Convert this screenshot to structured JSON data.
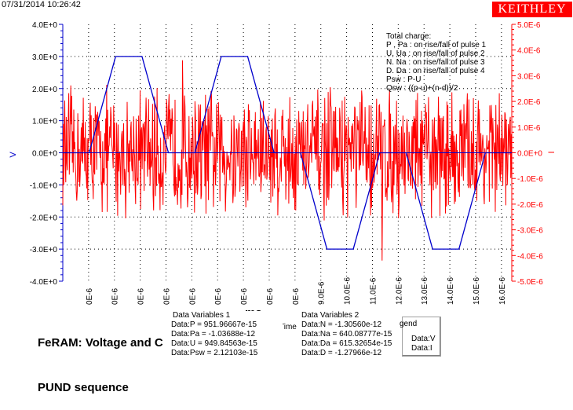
{
  "timestamp": "07/31/2014 10:26:42",
  "logo": "KEITHLEY",
  "title_lines": [
    "FeRAM: Voltage and C",
    "PUND sequence"
  ],
  "title_tail": "ms",
  "colors": {
    "voltage": "#0000cc",
    "current": "#ff0000",
    "grid": "#000000",
    "logo_bg": "#ff0000"
  },
  "chart_data": {
    "type": "line",
    "title": "",
    "xlabel": "Time",
    "ylabel_left": "V",
    "ylabel_right": "I",
    "grid": true,
    "y_left": {
      "range": [
        -4.0,
        4.0
      ],
      "ticks": [
        "4.0E+0",
        "3.0E+0",
        "2.0E+0",
        "1.0E+0",
        "0.0E+0",
        "-1.0E+0",
        "-2.0E+0",
        "-3.0E+0",
        "-4.0E+0"
      ]
    },
    "y_right": {
      "range": [
        -5e-06,
        5e-06
      ],
      "ticks": [
        "5.0E-6",
        "4.0E-6",
        "3.0E-6",
        "2.0E-6",
        "1.0E-6",
        "0.0E+0",
        "-1.0E-6",
        "-2.0E-6",
        "-3.0E-6",
        "-4.0E-6",
        "-5.0E-6"
      ]
    },
    "x": {
      "range": [
        0,
        1.7e-05
      ],
      "tick_labels": [
        "0E-6",
        "0E-6",
        "0E-6",
        "0E-6",
        "0E-6",
        "0E-6",
        "0E-6",
        "0E-6",
        "0E-6",
        "9.0E-6",
        "10.0E-6",
        "11.0E-6",
        "12.0E-6",
        "13.0E-6",
        "14.0E-6",
        "15.0E-6",
        "16.0E-6"
      ]
    },
    "series": [
      {
        "name": "Data:V",
        "axis": "left",
        "x": [
          0,
          1e-06,
          2e-06,
          3e-06,
          4e-06,
          5e-06,
          6e-06,
          7e-06,
          8e-06,
          9e-06,
          1e-05,
          1.1e-05,
          1.2e-05,
          1.3e-05,
          1.4e-05,
          1.5e-05,
          1.6e-05,
          1.7e-05
        ],
        "y": [
          0,
          0,
          3.0,
          3.0,
          0,
          0,
          3.0,
          3.0,
          0,
          0,
          -3.0,
          -3.0,
          0,
          0,
          -3.0,
          -3.0,
          0,
          0
        ]
      },
      {
        "name": "Data:I",
        "axis": "right",
        "note_amplitude": 2e-06,
        "peak_min": -4.2e-06,
        "peak_max": 3.6e-06
      }
    ],
    "annotation": [
      "Total charge:",
      "P , Pa  :  on rise/fall of pulse 1",
      "U, Ua   :  on rise/fall of pulse 2",
      "N. Na   :  on rise/fall of pulse 3",
      "D. Da   :  on rise/fall of pulse 4",
      "Psw : P-U",
      "Qsw : ((p-u)+(n-d))/2"
    ],
    "legend": {
      "title": "gend",
      "entries": [
        "Data:V",
        "Data:I"
      ]
    }
  },
  "data_variables_1": {
    "title": "Data Variables 1",
    "rows": [
      "Data:P = 951.96667e-15",
      "Data:Pa = -1.03688e-12",
      "Data:U = 949.84563e-15",
      "Data:Psw = 2.12103e-15"
    ]
  },
  "data_variables_2": {
    "title": "Data Variables 2",
    "rows": [
      "Data:N = -1.30560e-12",
      "Data:Na = 640.08777e-15",
      "Data:Da = 615.32654e-15",
      "Data:D = -1.27966e-12"
    ]
  }
}
